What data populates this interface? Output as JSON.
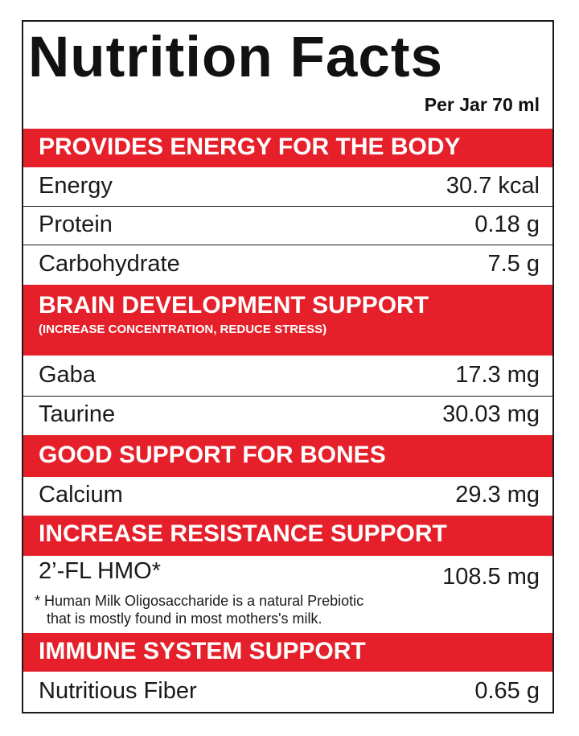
{
  "title": "Nutrition Facts",
  "serving": "Per Jar 70 ml",
  "colors": {
    "band": "#e5202a",
    "band_text": "#ffffff",
    "border": "#1a1a1a"
  },
  "sections": [
    {
      "heading": "PROVIDES ENERGY FOR THE BODY",
      "rows": [
        {
          "name": "Energy",
          "value": "30.7 kcal"
        },
        {
          "name": "Protein",
          "value": "0.18 g"
        },
        {
          "name": "Carbohydrate",
          "value": "7.5 g"
        }
      ]
    },
    {
      "heading": "BRAIN DEVELOPMENT SUPPORT",
      "subheading": "(INCREASE CONCENTRATION, REDUCE STRESS)",
      "rows": [
        {
          "name": "Gaba",
          "value": "17.3 mg"
        },
        {
          "name": "Taurine",
          "value": "30.03 mg"
        }
      ]
    },
    {
      "heading": "GOOD SUPPORT FOR BONES",
      "rows": [
        {
          "name": "Calcium",
          "value": "29.3 mg"
        }
      ]
    },
    {
      "heading": "INCREASE RESISTANCE SUPPORT",
      "rows": [
        {
          "name": "2’-FL HMO*",
          "value": "108.5 mg"
        }
      ],
      "note": {
        "line1": "* Human Milk Oligosaccharide is a natural Prebiotic",
        "line2": "that is mostly found in most mothers's milk."
      }
    },
    {
      "heading": "IMMUNE SYSTEM SUPPORT",
      "rows": [
        {
          "name": "Nutritious Fiber",
          "value": "0.65 g"
        }
      ]
    }
  ]
}
